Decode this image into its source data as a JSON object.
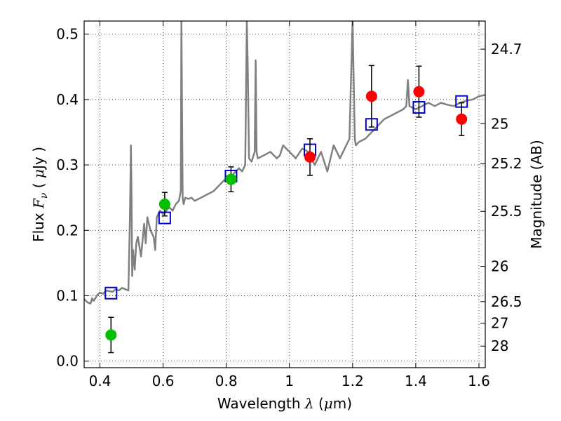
{
  "chart_data": {
    "type": "scatter",
    "xlabel": "Wavelength  λ (μm)",
    "ylabel": "Flux  Fν  ( μJy )",
    "ylabel_right": "Magnitude (AB)",
    "xlim": [
      0.35,
      1.62
    ],
    "ylim": [
      -0.01,
      0.52
    ],
    "grid": true,
    "x_ticks": [
      0.4,
      0.6,
      0.8,
      1.0,
      1.2,
      1.4,
      1.6
    ],
    "x_tick_labels": [
      "0.4",
      "0.6",
      "0.8",
      "1",
      "1.2",
      "1.4",
      "1.6"
    ],
    "y_ticks": [
      0.0,
      0.1,
      0.2,
      0.3,
      0.4,
      0.5
    ],
    "y_tick_labels": [
      "0.0",
      "0.1",
      "0.2",
      "0.3",
      "0.4",
      "0.5"
    ],
    "right_ticks": [
      {
        "label": "24.7",
        "flux": 0.477
      },
      {
        "label": "25",
        "flux": 0.363
      },
      {
        "label": "25.2",
        "flux": 0.302
      },
      {
        "label": "25.5",
        "flux": 0.229
      },
      {
        "label": "26",
        "flux": 0.145
      },
      {
        "label": "26.5",
        "flux": 0.091
      },
      {
        "label": "27",
        "flux": 0.058
      },
      {
        "label": "28",
        "flux": 0.023
      }
    ],
    "series": [
      {
        "kind": "line",
        "color": "#808080",
        "x": [
          0.35,
          0.36,
          0.37,
          0.375,
          0.38,
          0.39,
          0.4,
          0.41,
          0.42,
          0.43,
          0.44,
          0.45,
          0.46,
          0.47,
          0.48,
          0.49,
          0.495,
          0.498,
          0.5,
          0.502,
          0.505,
          0.51,
          0.515,
          0.52,
          0.53,
          0.54,
          0.545,
          0.55,
          0.56,
          0.57,
          0.575,
          0.58,
          0.59,
          0.6,
          0.61,
          0.62,
          0.63,
          0.64,
          0.65,
          0.656,
          0.658,
          0.662,
          0.665,
          0.67,
          0.68,
          0.69,
          0.7,
          0.72,
          0.74,
          0.76,
          0.78,
          0.8,
          0.82,
          0.84,
          0.85,
          0.86,
          0.865,
          0.868,
          0.872,
          0.88,
          0.89,
          0.893,
          0.896,
          0.9,
          0.92,
          0.94,
          0.96,
          0.97,
          0.98,
          1.0,
          1.02,
          1.04,
          1.06,
          1.08,
          1.1,
          1.12,
          1.14,
          1.16,
          1.18,
          1.19,
          1.2,
          1.203,
          1.207,
          1.21,
          1.22,
          1.24,
          1.26,
          1.28,
          1.3,
          1.32,
          1.34,
          1.36,
          1.37,
          1.375,
          1.38,
          1.4,
          1.42,
          1.44,
          1.46,
          1.48,
          1.5,
          1.52,
          1.54,
          1.56,
          1.58,
          1.6,
          1.62
        ],
        "y": [
          0.095,
          0.09,
          0.088,
          0.096,
          0.092,
          0.1,
          0.105,
          0.103,
          0.108,
          0.107,
          0.106,
          0.11,
          0.108,
          0.112,
          0.11,
          0.108,
          0.22,
          0.33,
          0.25,
          0.13,
          0.17,
          0.14,
          0.18,
          0.19,
          0.16,
          0.21,
          0.18,
          0.22,
          0.2,
          0.19,
          0.17,
          0.22,
          0.23,
          0.225,
          0.23,
          0.235,
          0.23,
          0.24,
          0.245,
          0.26,
          0.52,
          0.25,
          0.24,
          0.25,
          0.248,
          0.25,
          0.245,
          0.25,
          0.255,
          0.26,
          0.27,
          0.28,
          0.285,
          0.295,
          0.29,
          0.3,
          0.52,
          0.45,
          0.31,
          0.305,
          0.32,
          0.46,
          0.32,
          0.31,
          0.315,
          0.32,
          0.31,
          0.315,
          0.33,
          0.32,
          0.31,
          0.325,
          0.32,
          0.3,
          0.32,
          0.29,
          0.33,
          0.31,
          0.33,
          0.34,
          0.52,
          0.44,
          0.34,
          0.33,
          0.335,
          0.34,
          0.35,
          0.36,
          0.37,
          0.375,
          0.38,
          0.385,
          0.39,
          0.43,
          0.39,
          0.385,
          0.39,
          0.395,
          0.39,
          0.395,
          0.392,
          0.39,
          0.395,
          0.398,
          0.4,
          0.405,
          0.407
        ]
      },
      {
        "kind": "points",
        "marker": "open-square",
        "color": "#0000cc",
        "x": [
          0.435,
          0.605,
          0.815,
          1.065,
          1.26,
          1.41,
          1.545
        ],
        "y": [
          0.104,
          0.219,
          0.283,
          0.323,
          0.362,
          0.388,
          0.397
        ]
      },
      {
        "kind": "points",
        "marker": "filled-circle",
        "color": "#00c000",
        "x": [
          0.435,
          0.605,
          0.815
        ],
        "y": [
          0.04,
          0.24,
          0.278
        ],
        "err": [
          0.027,
          0.018,
          0.019
        ]
      },
      {
        "kind": "points",
        "marker": "filled-circle",
        "color": "#ff0000",
        "x": [
          1.065,
          1.26,
          1.41,
          1.545
        ],
        "y": [
          0.312,
          0.405,
          0.412,
          0.37
        ],
        "err": [
          0.028,
          0.047,
          0.039,
          0.025
        ]
      }
    ]
  }
}
